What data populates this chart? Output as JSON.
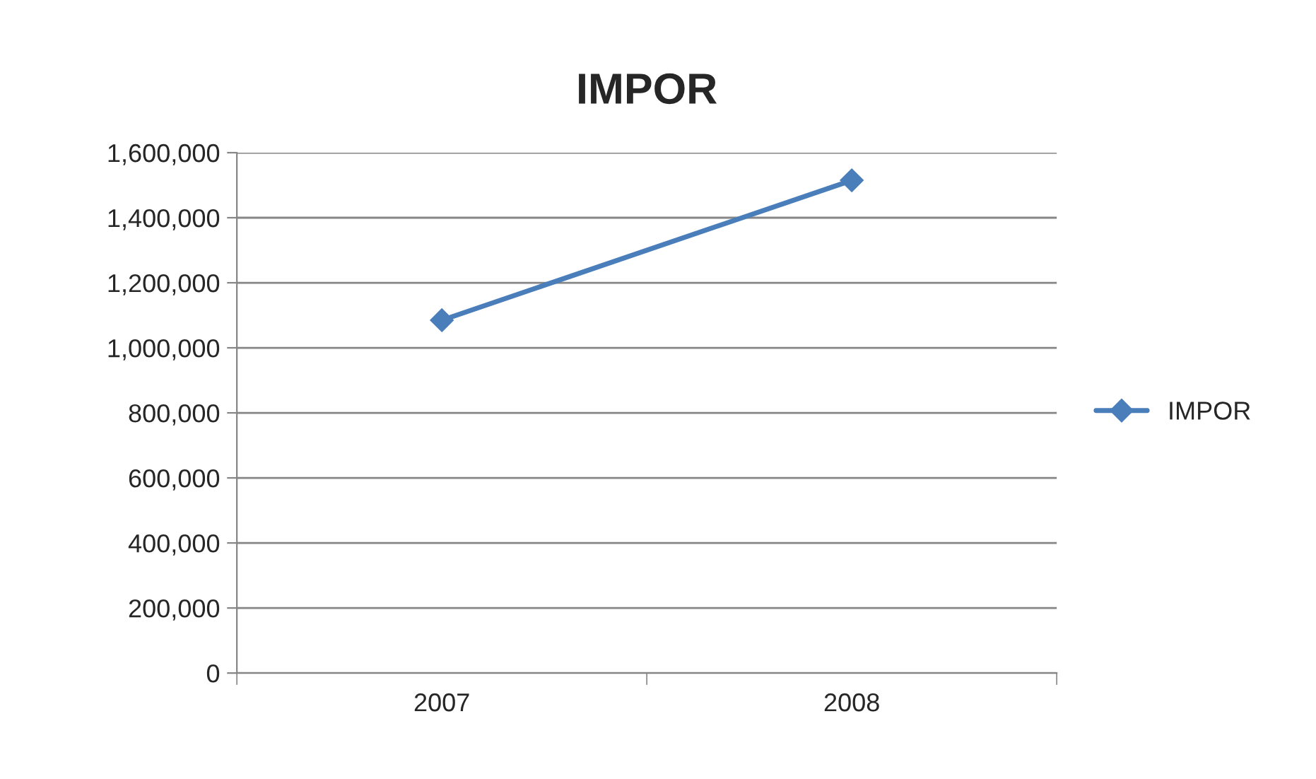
{
  "chart_data": {
    "type": "line",
    "title": "IMPOR",
    "categories": [
      "2007",
      "2008"
    ],
    "series": [
      {
        "name": "IMPOR",
        "color": "#4a7ebb",
        "values": [
          1085000,
          1515000
        ]
      }
    ],
    "ylim": [
      0,
      1600000
    ],
    "yticks": [
      {
        "value": 0,
        "label": "0"
      },
      {
        "value": 200000,
        "label": "200,000"
      },
      {
        "value": 400000,
        "label": "400,000"
      },
      {
        "value": 600000,
        "label": "600,000"
      },
      {
        "value": 800000,
        "label": "800,000"
      },
      {
        "value": 1000000,
        "label": "1,000,000"
      },
      {
        "value": 1200000,
        "label": "1,200,000"
      },
      {
        "value": 1400000,
        "label": "1,400,000"
      },
      {
        "value": 1600000,
        "label": "1,600,000"
      }
    ],
    "grid": "y",
    "legend": "right",
    "marker": "diamond",
    "line_style": "solid"
  }
}
